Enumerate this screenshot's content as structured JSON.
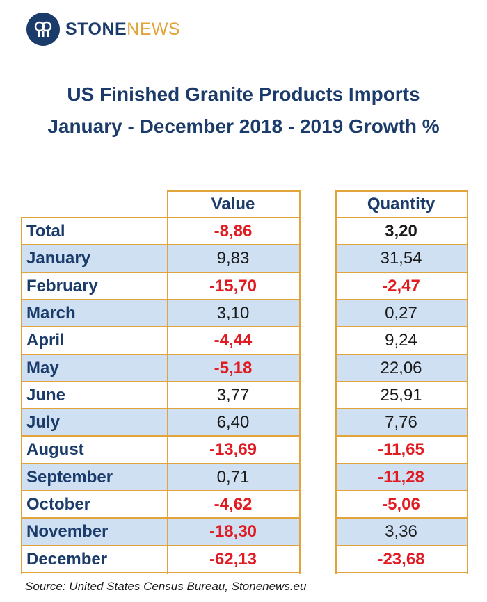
{
  "brand": {
    "stone": "STONE",
    "news": "NEWS"
  },
  "title_line1": "US Finished Granite Products Imports",
  "title_line2": "January - December 2018 - 2019 Growth %",
  "columns": {
    "value": "Value",
    "quantity": "Quantity"
  },
  "rows": [
    {
      "label": "Total",
      "value": "-8,86",
      "quantity": "3,20"
    },
    {
      "label": "January",
      "value": "9,83",
      "quantity": "31,54"
    },
    {
      "label": "February",
      "value": "-15,70",
      "quantity": "-2,47"
    },
    {
      "label": "March",
      "value": "3,10",
      "quantity": "0,27"
    },
    {
      "label": "April",
      "value": "-4,44",
      "quantity": "9,24"
    },
    {
      "label": "May",
      "value": "-5,18",
      "quantity": "22,06"
    },
    {
      "label": "June",
      "value": "3,77",
      "quantity": "25,91"
    },
    {
      "label": "July",
      "value": "6,40",
      "quantity": "7,76"
    },
    {
      "label": "August",
      "value": "-13,69",
      "quantity": "-11,65"
    },
    {
      "label": "September",
      "value": "0,71",
      "quantity": "-11,28"
    },
    {
      "label": "October",
      "value": "-4,62",
      "quantity": "-5,06"
    },
    {
      "label": "November",
      "value": "-18,30",
      "quantity": "3,36"
    },
    {
      "label": "December",
      "value": "-62,13",
      "quantity": "-23,68"
    }
  ],
  "source": "Source: United States Census Bureau, Stonenews.eu",
  "colors": {
    "navy": "#1b3c6b",
    "gold": "#e2a33a",
    "negative": "#e01b22",
    "row_shade": "#cfe0f3"
  },
  "chart_data": {
    "type": "table",
    "columns": [
      "Value",
      "Quantity"
    ],
    "categories": [
      "Total",
      "January",
      "February",
      "March",
      "April",
      "May",
      "June",
      "July",
      "August",
      "September",
      "October",
      "November",
      "December"
    ],
    "series": [
      {
        "name": "Value",
        "values": [
          -8.86,
          9.83,
          -15.7,
          3.1,
          -4.44,
          -5.18,
          3.77,
          6.4,
          -13.69,
          0.71,
          -4.62,
          -18.3,
          -62.13
        ]
      },
      {
        "name": "Quantity",
        "values": [
          3.2,
          31.54,
          -2.47,
          0.27,
          9.24,
          22.06,
          25.91,
          7.76,
          -11.65,
          -11.28,
          -5.06,
          3.36,
          -23.68
        ]
      }
    ]
  }
}
